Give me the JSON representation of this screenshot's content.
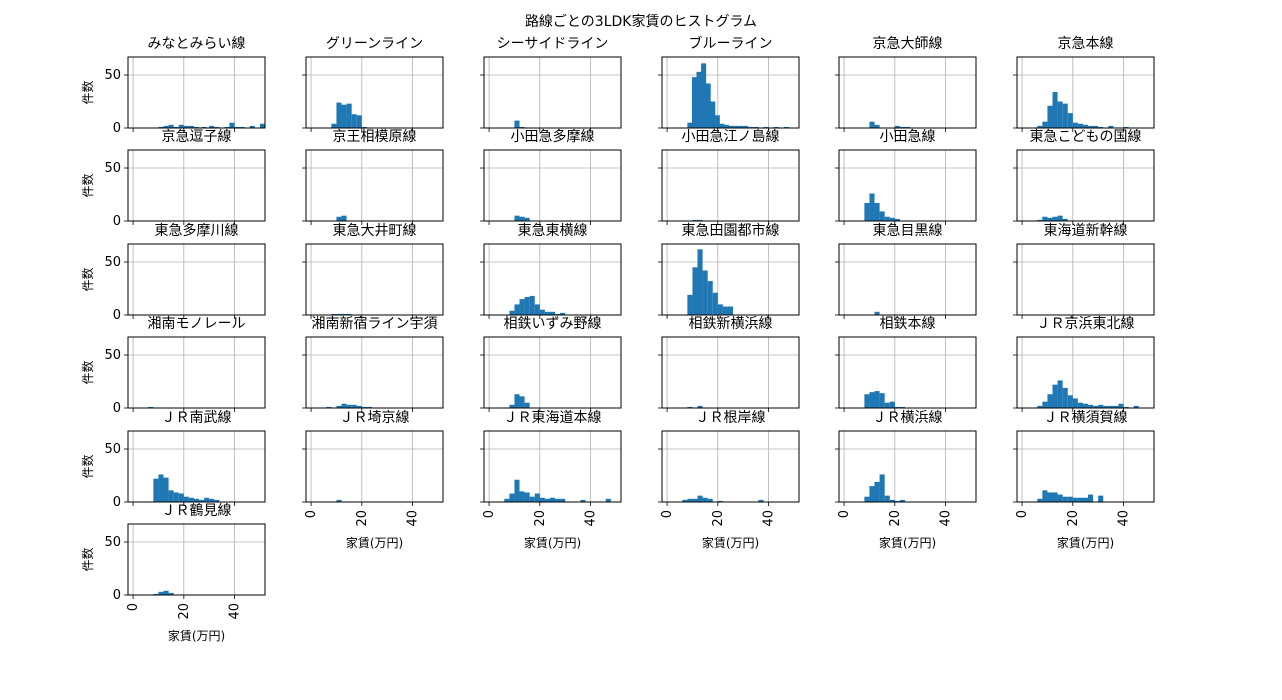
{
  "chart_data": {
    "type": "bar",
    "title": "路線ごとの3LDK家賃のヒストグラム",
    "xlabel": "家賃(万円)",
    "ylabel": "件数",
    "xlim": [
      -2,
      52
    ],
    "ylim": [
      0,
      67
    ],
    "xticks": [
      "0",
      "20",
      "40"
    ],
    "yticks": [
      "0",
      "50"
    ],
    "grid": true,
    "panels": [
      {
        "name": "みなとみらい線",
        "bins": [
          [
            10,
            1
          ],
          [
            12,
            2
          ],
          [
            14,
            3
          ],
          [
            16,
            1
          ],
          [
            18,
            3
          ],
          [
            20,
            2
          ],
          [
            22,
            2
          ],
          [
            24,
            1
          ],
          [
            27,
            1
          ],
          [
            30,
            2
          ],
          [
            32,
            1
          ],
          [
            36,
            1
          ],
          [
            38,
            5
          ],
          [
            40,
            1
          ],
          [
            42,
            1
          ],
          [
            46,
            2
          ],
          [
            50,
            4
          ]
        ]
      },
      {
        "name": "グリーンライン",
        "bins": [
          [
            8,
            4
          ],
          [
            10,
            24
          ],
          [
            12,
            22
          ],
          [
            14,
            23
          ],
          [
            16,
            13
          ],
          [
            18,
            12
          ],
          [
            20,
            1
          ]
        ]
      },
      {
        "name": "シーサイドライン",
        "bins": [
          [
            10,
            7
          ],
          [
            12,
            1
          ]
        ]
      },
      {
        "name": "ブルーライン",
        "bins": [
          [
            8,
            5
          ],
          [
            9.8,
            48
          ],
          [
            11.6,
            53
          ],
          [
            13.4,
            61
          ],
          [
            15.2,
            42
          ],
          [
            17,
            25
          ],
          [
            18.8,
            12
          ],
          [
            20.6,
            4
          ],
          [
            22.4,
            3
          ],
          [
            24.2,
            2
          ],
          [
            26,
            2
          ],
          [
            28,
            2
          ],
          [
            30,
            2
          ],
          [
            32,
            1
          ],
          [
            34,
            1
          ],
          [
            38,
            1
          ],
          [
            42,
            1
          ],
          [
            46,
            1
          ]
        ]
      },
      {
        "name": "京急大師線",
        "bins": [
          [
            10,
            6
          ],
          [
            12,
            3
          ],
          [
            20,
            2
          ],
          [
            22,
            1
          ],
          [
            24,
            1
          ]
        ]
      },
      {
        "name": "京急本線",
        "bins": [
          [
            6,
            2
          ],
          [
            8,
            6
          ],
          [
            10,
            21
          ],
          [
            12,
            34
          ],
          [
            14,
            25
          ],
          [
            16,
            23
          ],
          [
            18,
            14
          ],
          [
            20,
            5
          ],
          [
            22,
            4
          ],
          [
            24,
            3
          ],
          [
            26,
            2
          ],
          [
            28,
            2
          ],
          [
            30,
            1
          ],
          [
            34,
            2
          ],
          [
            40,
            1
          ]
        ]
      },
      {
        "name": "京急逗子線",
        "bins": []
      },
      {
        "name": "京王相模原線",
        "bins": [
          [
            10,
            4
          ],
          [
            12,
            5
          ]
        ]
      },
      {
        "name": "小田急多摩線",
        "bins": [
          [
            10,
            5
          ],
          [
            12,
            4
          ],
          [
            14,
            3
          ]
        ]
      },
      {
        "name": "小田急江ノ島線",
        "bins": [
          [
            10,
            1
          ],
          [
            12,
            1
          ]
        ]
      },
      {
        "name": "小田急線",
        "bins": [
          [
            8,
            17
          ],
          [
            10,
            26
          ],
          [
            12,
            17
          ],
          [
            14,
            9
          ],
          [
            16,
            4
          ],
          [
            18,
            3
          ],
          [
            20,
            2
          ]
        ]
      },
      {
        "name": "東急こどもの国線",
        "bins": [
          [
            6,
            1
          ],
          [
            8,
            4
          ],
          [
            10,
            3
          ],
          [
            12,
            4
          ],
          [
            14,
            5
          ],
          [
            16,
            2
          ]
        ]
      },
      {
        "name": "東急多摩川線",
        "bins": []
      },
      {
        "name": "東急大井町線",
        "bins": [
          [
            8,
            1
          ],
          [
            10,
            1
          ],
          [
            12,
            1
          ],
          [
            14,
            1
          ]
        ]
      },
      {
        "name": "東急東横線",
        "bins": [
          [
            8,
            4
          ],
          [
            10,
            10
          ],
          [
            12,
            15
          ],
          [
            14,
            17
          ],
          [
            16,
            18
          ],
          [
            18,
            10
          ],
          [
            20,
            5
          ],
          [
            22,
            3
          ],
          [
            24,
            3
          ],
          [
            26,
            1
          ],
          [
            28,
            2
          ]
        ]
      },
      {
        "name": "東急田園都市線",
        "bins": [
          [
            8,
            19
          ],
          [
            10,
            45
          ],
          [
            12,
            62
          ],
          [
            14,
            42
          ],
          [
            16,
            32
          ],
          [
            18,
            21
          ],
          [
            20,
            10
          ],
          [
            22,
            8
          ],
          [
            24,
            8
          ]
        ]
      },
      {
        "name": "東急目黒線",
        "bins": [
          [
            12,
            3
          ]
        ]
      },
      {
        "name": "東海道新幹線",
        "bins": []
      },
      {
        "name": "湘南モノレール",
        "bins": [
          [
            6,
            1
          ]
        ]
      },
      {
        "name": "湘南新宿ライン宇須",
        "bins": [
          [
            6,
            1
          ],
          [
            10,
            2
          ],
          [
            12,
            4
          ],
          [
            14,
            3
          ],
          [
            16,
            3
          ],
          [
            18,
            2
          ],
          [
            20,
            1
          ],
          [
            22,
            1
          ]
        ]
      },
      {
        "name": "相鉄いずみ野線",
        "bins": [
          [
            8,
            3
          ],
          [
            10,
            13
          ],
          [
            12,
            11
          ],
          [
            14,
            5
          ]
        ]
      },
      {
        "name": "相鉄新横浜線",
        "bins": [
          [
            8,
            1
          ],
          [
            12,
            2
          ]
        ]
      },
      {
        "name": "相鉄本線",
        "bins": [
          [
            8,
            13
          ],
          [
            10,
            15
          ],
          [
            12,
            16
          ],
          [
            14,
            14
          ],
          [
            16,
            5
          ],
          [
            18,
            6
          ],
          [
            20,
            1
          ],
          [
            22,
            1
          ]
        ]
      },
      {
        "name": "ＪＲ京浜東北線",
        "bins": [
          [
            6,
            2
          ],
          [
            8,
            6
          ],
          [
            10,
            13
          ],
          [
            12,
            22
          ],
          [
            14,
            26
          ],
          [
            16,
            19
          ],
          [
            18,
            12
          ],
          [
            20,
            9
          ],
          [
            22,
            5
          ],
          [
            24,
            4
          ],
          [
            26,
            3
          ],
          [
            28,
            2
          ],
          [
            30,
            3
          ],
          [
            32,
            2
          ],
          [
            34,
            2
          ],
          [
            36,
            2
          ],
          [
            38,
            4
          ],
          [
            40,
            1
          ],
          [
            44,
            2
          ]
        ]
      },
      {
        "name": "ＪＲ南武線",
        "bins": [
          [
            8,
            22
          ],
          [
            10,
            26
          ],
          [
            12,
            23
          ],
          [
            14,
            11
          ],
          [
            16,
            9
          ],
          [
            18,
            8
          ],
          [
            20,
            5
          ],
          [
            22,
            4
          ],
          [
            24,
            3
          ],
          [
            26,
            2
          ],
          [
            28,
            4
          ],
          [
            30,
            3
          ],
          [
            32,
            2
          ]
        ]
      },
      {
        "name": "ＪＲ埼京線",
        "bins": [
          [
            10,
            2
          ]
        ]
      },
      {
        "name": "ＪＲ東海道本線",
        "bins": [
          [
            6,
            3
          ],
          [
            8,
            8
          ],
          [
            10,
            21
          ],
          [
            12,
            10
          ],
          [
            14,
            9
          ],
          [
            16,
            5
          ],
          [
            18,
            8
          ],
          [
            20,
            4
          ],
          [
            22,
            3
          ],
          [
            24,
            4
          ],
          [
            26,
            3
          ],
          [
            28,
            3
          ],
          [
            36,
            2
          ],
          [
            46,
            3
          ]
        ]
      },
      {
        "name": "ＪＲ根岸線",
        "bins": [
          [
            6,
            2
          ],
          [
            8,
            3
          ],
          [
            10,
            3
          ],
          [
            12,
            6
          ],
          [
            14,
            4
          ],
          [
            16,
            3
          ],
          [
            20,
            1
          ],
          [
            36,
            2
          ]
        ]
      },
      {
        "name": "ＪＲ横浜線",
        "bins": [
          [
            8,
            5
          ],
          [
            10,
            15
          ],
          [
            12,
            19
          ],
          [
            14,
            26
          ],
          [
            16,
            6
          ],
          [
            18,
            2
          ],
          [
            20,
            1
          ],
          [
            22,
            2
          ]
        ]
      },
      {
        "name": "ＪＲ横須賀線",
        "bins": [
          [
            6,
            3
          ],
          [
            8,
            11
          ],
          [
            10,
            9
          ],
          [
            12,
            9
          ],
          [
            14,
            7
          ],
          [
            16,
            5
          ],
          [
            18,
            5
          ],
          [
            20,
            4
          ],
          [
            22,
            4
          ],
          [
            24,
            4
          ],
          [
            26,
            7
          ],
          [
            30,
            6
          ]
        ]
      },
      {
        "name": "ＪＲ鶴見線",
        "bins": [
          [
            8,
            1
          ],
          [
            10,
            3
          ],
          [
            12,
            4
          ],
          [
            14,
            2
          ]
        ]
      }
    ]
  }
}
